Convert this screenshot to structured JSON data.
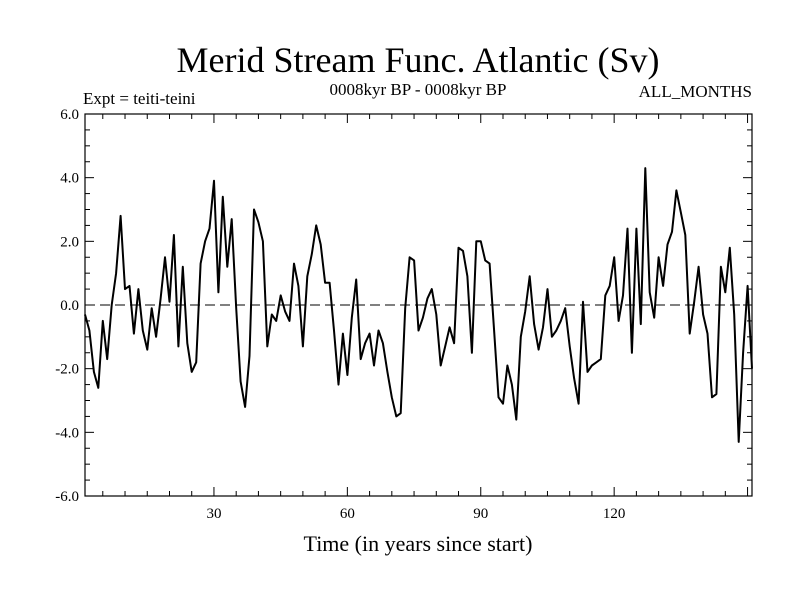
{
  "chart_data": {
    "type": "line",
    "title": "Merid Stream Func. Atlantic (Sv)",
    "subtitle_left": "Expt = teiti-teini",
    "subtitle_center": "0008kyr BP - 0008kyr BP",
    "subtitle_right": "ALL_MONTHS",
    "xlabel": "Time (in years since start)",
    "ylabel": "",
    "xlim": [
      1,
      151
    ],
    "ylim": [
      -6,
      6
    ],
    "xticks": [
      30,
      60,
      90,
      120
    ],
    "xtick_labels": [
      "30",
      "60",
      "90",
      "120"
    ],
    "yticks": [
      -6,
      -4,
      -2,
      0,
      2,
      4,
      6
    ],
    "ytick_labels": [
      "-6.0",
      "-4.0",
      "-2.0",
      "0.0",
      "2.0",
      "4.0",
      "6.0"
    ],
    "zero_line": 0,
    "series": [
      {
        "name": "Merid Stream Func.",
        "x": [
          1,
          2,
          3,
          4,
          5,
          6,
          7,
          8,
          9,
          10,
          11,
          12,
          13,
          14,
          15,
          16,
          17,
          18,
          19,
          20,
          21,
          22,
          23,
          24,
          25,
          26,
          27,
          28,
          29,
          30,
          31,
          32,
          33,
          34,
          35,
          36,
          37,
          38,
          39,
          40,
          41,
          42,
          43,
          44,
          45,
          46,
          47,
          48,
          49,
          50,
          51,
          52,
          53,
          54,
          55,
          56,
          57,
          58,
          59,
          60,
          61,
          62,
          63,
          64,
          65,
          66,
          67,
          68,
          69,
          70,
          71,
          72,
          73,
          74,
          75,
          76,
          77,
          78,
          79,
          80,
          81,
          82,
          83,
          84,
          85,
          86,
          87,
          88,
          89,
          90,
          91,
          92,
          93,
          94,
          95,
          96,
          97,
          98,
          99,
          100,
          101,
          102,
          103,
          104,
          105,
          106,
          107,
          108,
          109,
          110,
          111,
          112,
          113,
          114,
          115,
          116,
          117,
          118,
          119,
          120,
          121,
          122,
          123,
          124,
          125,
          126,
          127,
          128,
          129,
          130,
          131,
          132,
          133,
          134,
          135,
          136,
          137,
          138,
          139,
          140,
          141,
          142,
          143,
          144,
          145,
          146,
          147,
          148,
          149,
          150,
          151
        ],
        "y": [
          -0.3,
          -0.8,
          -2.1,
          -2.6,
          -0.5,
          -1.7,
          0.0,
          1.0,
          2.8,
          0.5,
          0.6,
          -0.9,
          0.5,
          -0.8,
          -1.4,
          -0.1,
          -1.0,
          0.2,
          1.5,
          0.1,
          2.2,
          -1.3,
          1.2,
          -1.2,
          -2.1,
          -1.8,
          1.3,
          2.0,
          2.4,
          3.9,
          0.4,
          3.4,
          1.2,
          2.7,
          -0.1,
          -2.4,
          -3.2,
          -1.6,
          3.0,
          2.6,
          2.0,
          -1.3,
          -0.3,
          -0.5,
          0.3,
          -0.2,
          -0.5,
          1.3,
          0.6,
          -1.3,
          0.9,
          1.6,
          2.5,
          1.9,
          0.7,
          0.7,
          -0.8,
          -2.5,
          -0.9,
          -2.2,
          -0.4,
          0.8,
          -1.7,
          -1.2,
          -0.9,
          -1.9,
          -0.8,
          -1.2,
          -2.1,
          -2.9,
          -3.5,
          -3.4,
          -0.1,
          1.5,
          1.4,
          -0.8,
          -0.4,
          0.2,
          0.5,
          -0.3,
          -1.9,
          -1.3,
          -0.7,
          -1.2,
          1.8,
          1.7,
          0.9,
          -1.5,
          2.0,
          2.0,
          1.4,
          1.3,
          -0.8,
          -2.9,
          -3.1,
          -1.9,
          -2.5,
          -3.6,
          -1.0,
          -0.2,
          0.9,
          -0.6,
          -1.4,
          -0.7,
          0.5,
          -1.0,
          -0.8,
          -0.5,
          -0.1,
          -1.3,
          -2.3,
          -3.1,
          0.1,
          -2.1,
          -1.9,
          -1.8,
          -1.7,
          0.3,
          0.6,
          1.5,
          -0.5,
          0.3,
          2.4,
          -1.5,
          2.4,
          -0.6,
          4.3,
          0.4,
          -0.4,
          1.5,
          0.6,
          1.9,
          2.3,
          3.6,
          2.9,
          2.2,
          -0.9,
          0.1,
          1.2,
          -0.3,
          -0.9,
          -2.9,
          -2.8,
          1.2,
          0.4,
          1.8,
          -0.3,
          -4.3,
          -1.5,
          0.6,
          -2.0
        ]
      }
    ]
  }
}
